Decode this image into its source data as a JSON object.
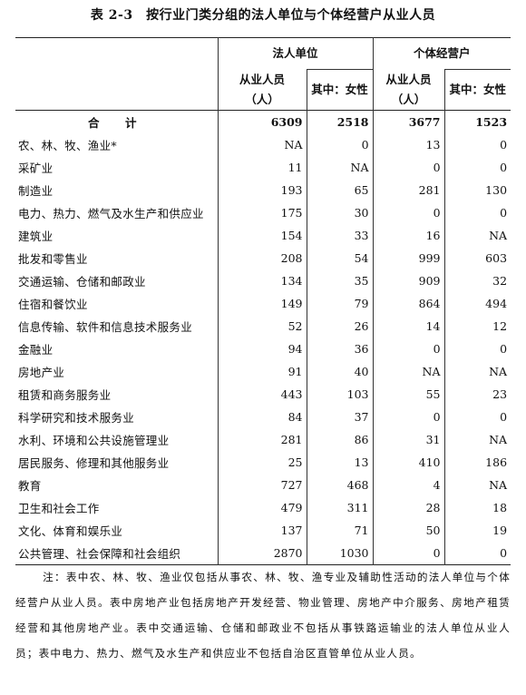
{
  "title": "表 2-3　按行业门类分组的法人单位与个体经营户从业人员",
  "header": {
    "group1": "法人单位",
    "group2": "个体经营户",
    "emp_label_line1": "从业人员",
    "emp_label_line2": "（人）",
    "female_label": "其中：女性"
  },
  "rows": [
    {
      "name": "合　计",
      "c1": "6309",
      "c2": "2518",
      "c3": "3677",
      "c4": "1523"
    },
    {
      "name": "农、林、牧、渔业*",
      "c1": "NA",
      "c2": "0",
      "c3": "13",
      "c4": "0"
    },
    {
      "name": "采矿业",
      "c1": "11",
      "c2": "NA",
      "c3": "0",
      "c4": "0"
    },
    {
      "name": "制造业",
      "c1": "193",
      "c2": "65",
      "c3": "281",
      "c4": "130"
    },
    {
      "name": "电力、热力、燃气及水生产和供应业",
      "c1": "175",
      "c2": "30",
      "c3": "0",
      "c4": "0"
    },
    {
      "name": "建筑业",
      "c1": "154",
      "c2": "33",
      "c3": "16",
      "c4": "NA"
    },
    {
      "name": "批发和零售业",
      "c1": "208",
      "c2": "54",
      "c3": "999",
      "c4": "603"
    },
    {
      "name": "交通运输、仓储和邮政业",
      "c1": "134",
      "c2": "35",
      "c3": "909",
      "c4": "32"
    },
    {
      "name": "住宿和餐饮业",
      "c1": "149",
      "c2": "79",
      "c3": "864",
      "c4": "494"
    },
    {
      "name": "信息传输、软件和信息技术服务业",
      "c1": "52",
      "c2": "26",
      "c3": "14",
      "c4": "12"
    },
    {
      "name": "金融业",
      "c1": "94",
      "c2": "36",
      "c3": "0",
      "c4": "0"
    },
    {
      "name": "房地产业",
      "c1": "91",
      "c2": "40",
      "c3": "NA",
      "c4": "NA"
    },
    {
      "name": "租赁和商务服务业",
      "c1": "443",
      "c2": "103",
      "c3": "55",
      "c4": "23"
    },
    {
      "name": "科学研究和技术服务业",
      "c1": "84",
      "c2": "37",
      "c3": "0",
      "c4": "0"
    },
    {
      "name": "水利、环境和公共设施管理业",
      "c1": "281",
      "c2": "86",
      "c3": "31",
      "c4": "NA"
    },
    {
      "name": "居民服务、修理和其他服务业",
      "c1": "25",
      "c2": "13",
      "c3": "410",
      "c4": "186"
    },
    {
      "name": "教育",
      "c1": "727",
      "c2": "468",
      "c3": "4",
      "c4": "NA"
    },
    {
      "name": "卫生和社会工作",
      "c1": "479",
      "c2": "311",
      "c3": "28",
      "c4": "18"
    },
    {
      "name": "文化、体育和娱乐业",
      "c1": "137",
      "c2": "71",
      "c3": "50",
      "c4": "19"
    },
    {
      "name": "公共管理、社会保障和社会组织",
      "c1": "2870",
      "c2": "1030",
      "c3": "0",
      "c4": "0"
    }
  ],
  "note": "注：表中农、林、牧、渔业仅包括从事农、林、牧、渔专业及辅助性活动的法人单位与个体经营户从业人员。表中房地产业包括房地产开发经营、物业管理、房地产中介服务、房地产租赁经营和其他房地产业。表中交通运输、仓储和邮政业不包括从事铁路运输业的法人单位从业人员；表中电力、热力、燃气及水生产和供应业不包括自治区直管单位从业人员。"
}
